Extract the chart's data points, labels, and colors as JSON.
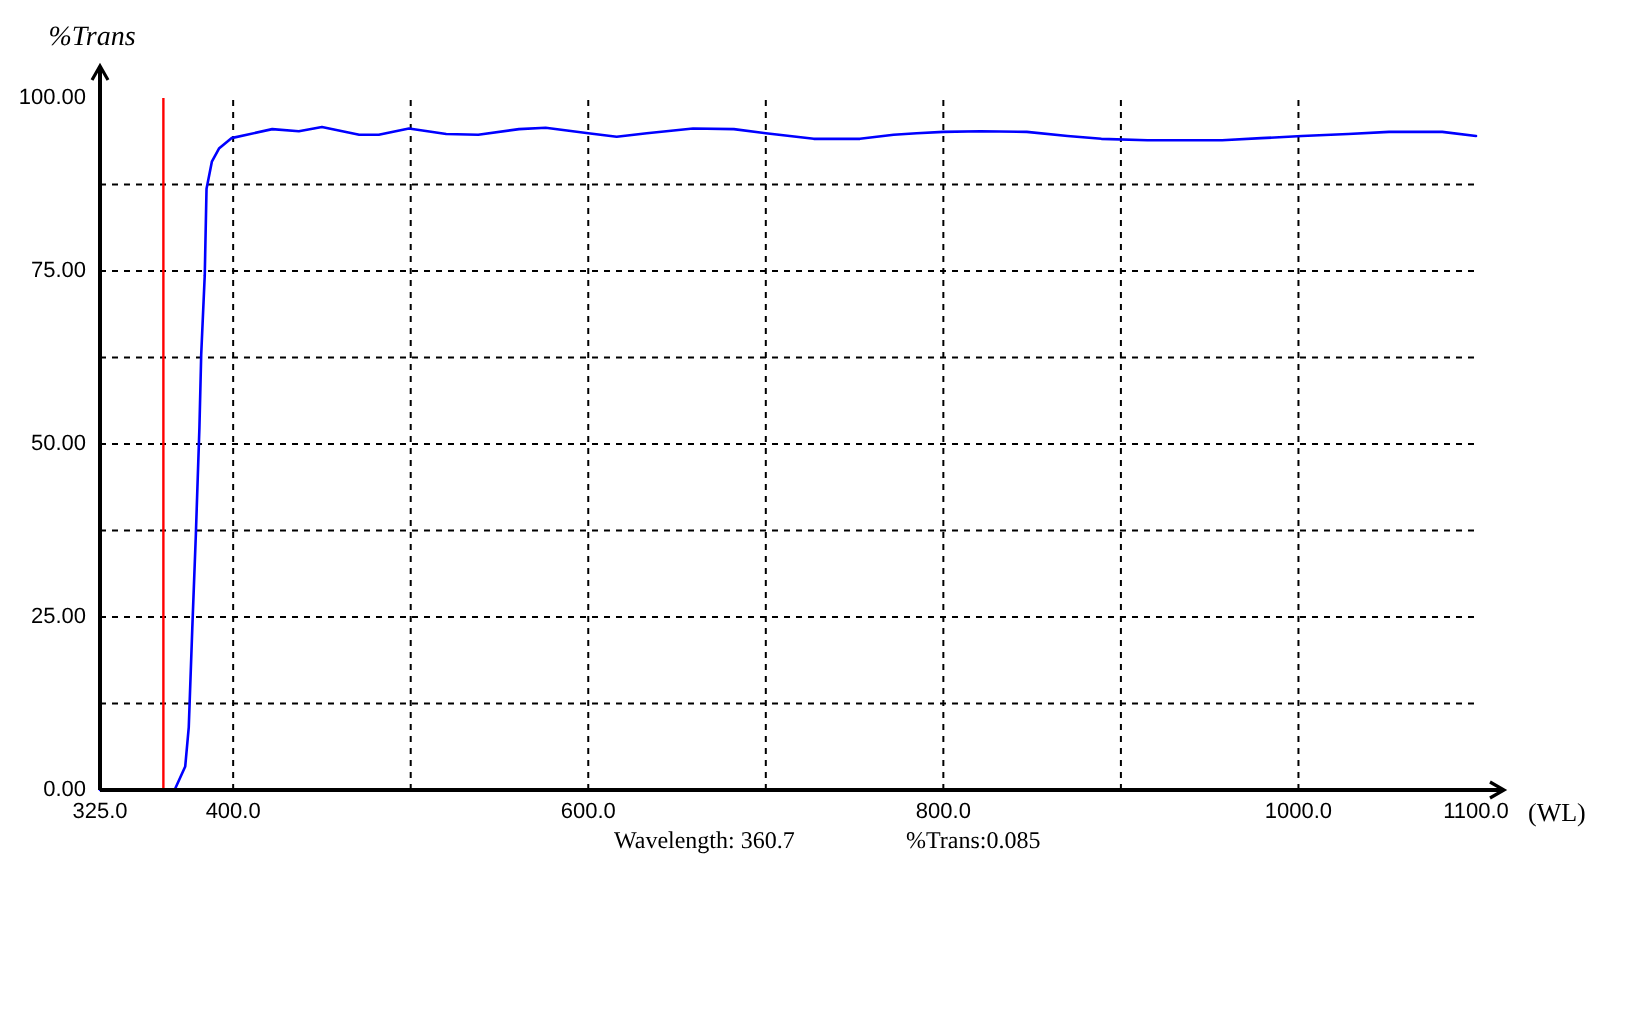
{
  "chart_data": {
    "type": "line",
    "ylabel": "%Trans",
    "xlabel": "(WL)",
    "annotations": [
      "Wavelength: 360.7",
      "%Trans:0.085"
    ],
    "x": [
      325,
      367,
      373,
      375,
      377,
      379,
      381,
      382,
      384,
      385,
      388,
      392,
      399,
      422,
      437,
      450,
      471,
      482,
      499,
      520,
      538,
      561,
      576,
      600,
      616,
      633,
      659,
      682,
      700,
      727,
      753,
      772,
      785,
      800,
      821,
      847,
      870,
      889,
      915,
      938,
      957,
      979,
      1002,
      1028,
      1051,
      1081,
      1100
    ],
    "series": [
      {
        "color": "#0000ff",
        "values": [
          0,
          0,
          3.4,
          9.1,
          23.5,
          37.0,
          52.4,
          62.9,
          74.4,
          86.9,
          90.8,
          92.7,
          94.2,
          95.5,
          95.2,
          95.8,
          94.7,
          94.7,
          95.6,
          94.8,
          94.7,
          95.5,
          95.7,
          94.9,
          94.4,
          94.9,
          95.6,
          95.5,
          94.9,
          94.1,
          94.1,
          94.7,
          94.9,
          95.1,
          95.2,
          95.1,
          94.5,
          94.1,
          93.9,
          93.9,
          93.9,
          94.2,
          94.5,
          94.8,
          95.1,
          95.1,
          94.5
        ]
      }
    ],
    "xlim": [
      325,
      1100
    ],
    "ylim": [
      0,
      100
    ],
    "xticks": [
      {
        "value": 325,
        "label": "325.0"
      },
      {
        "value": 400,
        "label": "400.0"
      },
      {
        "value": 500,
        "label": null
      },
      {
        "value": 600,
        "label": "600.0"
      },
      {
        "value": 700,
        "label": null
      },
      {
        "value": 800,
        "label": "800.0"
      },
      {
        "value": 900,
        "label": null
      },
      {
        "value": 1000,
        "label": "1000.0"
      },
      {
        "value": 1100,
        "label": "1100.0"
      }
    ],
    "yticks": [
      {
        "value": 0,
        "label": "0.00"
      },
      {
        "value": 12.5,
        "label": null
      },
      {
        "value": 25,
        "label": "25.00"
      },
      {
        "value": 37.5,
        "label": null
      },
      {
        "value": 50,
        "label": "50.00"
      },
      {
        "value": 62.5,
        "label": null
      },
      {
        "value": 75,
        "label": "75.00"
      },
      {
        "value": 87.5,
        "label": null
      },
      {
        "value": 100,
        "label": "100.00"
      }
    ],
    "grid": true,
    "ref_lines": [
      {
        "axis": "x",
        "value": 360.7,
        "color": "#ff0000"
      }
    ]
  }
}
